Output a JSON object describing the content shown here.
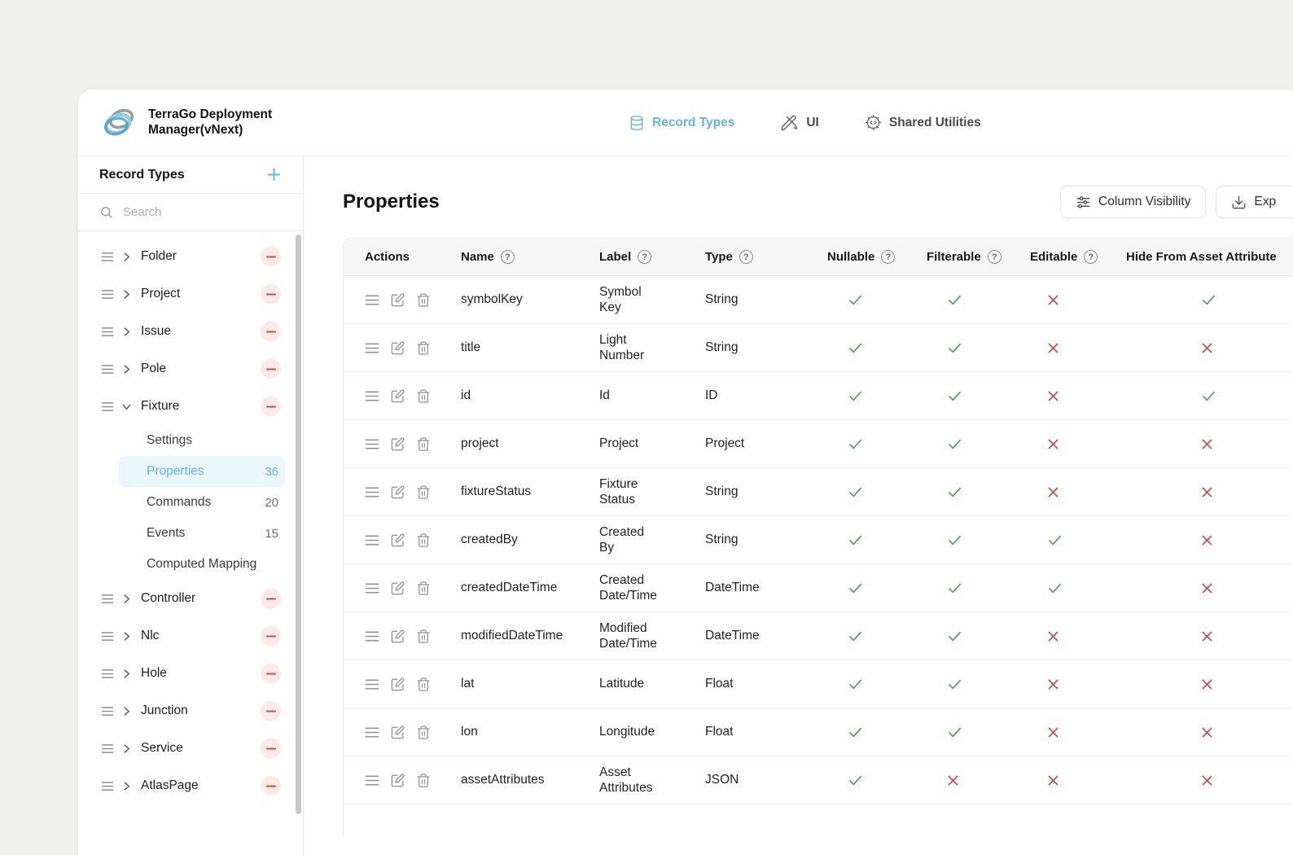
{
  "window": {
    "app_title": "TerraGo Deployment Manager(vNext)",
    "nav": [
      {
        "label": "Record Types",
        "icon": "database-icon",
        "active": true
      },
      {
        "label": "UI",
        "icon": "design-pens-icon",
        "active": false
      },
      {
        "label": "Shared Utilities",
        "icon": "gear-icon",
        "active": false
      }
    ]
  },
  "sidebar": {
    "title": "Record Types",
    "search_placeholder": "Search",
    "items": [
      {
        "label": "Folder"
      },
      {
        "label": "Project"
      },
      {
        "label": "Issue"
      },
      {
        "label": "Pole"
      },
      {
        "label": "Fixture",
        "expanded": true,
        "children": [
          {
            "label": "Settings"
          },
          {
            "label": "Properties",
            "count": "36",
            "selected": true
          },
          {
            "label": "Commands",
            "count": "20"
          },
          {
            "label": "Events",
            "count": "15"
          },
          {
            "label": "Computed Mapping"
          }
        ]
      },
      {
        "label": "Controller"
      },
      {
        "label": "Nlc"
      },
      {
        "label": "Hole"
      },
      {
        "label": "Junction"
      },
      {
        "label": "Service"
      },
      {
        "label": "AtlasPage"
      }
    ]
  },
  "main": {
    "title": "Properties",
    "toolbar": {
      "column_visibility_label": "Column Visibility",
      "export_label": "Exp"
    },
    "table": {
      "help_symbol": "?",
      "columns": [
        {
          "label": "Actions",
          "help": false
        },
        {
          "label": "Name",
          "help": true
        },
        {
          "label": "Label",
          "help": true
        },
        {
          "label": "Type",
          "help": true
        },
        {
          "label": "Nullable",
          "help": true
        },
        {
          "label": "Filterable",
          "help": true
        },
        {
          "label": "Editable",
          "help": true
        },
        {
          "label": "Hide From Asset Attribute",
          "help": false
        }
      ],
      "row_action_icons": [
        "drag-handle-icon",
        "edit-icon",
        "trash-icon"
      ],
      "rows": [
        {
          "name": "symbolKey",
          "label": "Symbol Key",
          "type": "String",
          "nullable": true,
          "filterable": true,
          "editable": false,
          "hide_from_asset_attributes": true
        },
        {
          "name": "title",
          "label": "Light Number",
          "type": "String",
          "nullable": true,
          "filterable": true,
          "editable": false,
          "hide_from_asset_attributes": false
        },
        {
          "name": "id",
          "label": "Id",
          "type": "ID",
          "nullable": true,
          "filterable": true,
          "editable": false,
          "hide_from_asset_attributes": true
        },
        {
          "name": "project",
          "label": "Project",
          "type": "Project",
          "nullable": true,
          "filterable": true,
          "editable": false,
          "hide_from_asset_attributes": false
        },
        {
          "name": "fixtureStatus",
          "label": "Fixture Status",
          "type": "String",
          "nullable": true,
          "filterable": true,
          "editable": false,
          "hide_from_asset_attributes": false
        },
        {
          "name": "createdBy",
          "label": "Created By",
          "type": "String",
          "nullable": true,
          "filterable": true,
          "editable": true,
          "hide_from_asset_attributes": false
        },
        {
          "name": "createdDateTime",
          "label": "Created Date/Time",
          "type": "DateTime",
          "nullable": true,
          "filterable": true,
          "editable": true,
          "hide_from_asset_attributes": false
        },
        {
          "name": "modifiedDateTime",
          "label": "Modified Date/Time",
          "type": "DateTime",
          "nullable": true,
          "filterable": true,
          "editable": false,
          "hide_from_asset_attributes": false
        },
        {
          "name": "lat",
          "label": "Latitude",
          "type": "Float",
          "nullable": true,
          "filterable": true,
          "editable": false,
          "hide_from_asset_attributes": false
        },
        {
          "name": "lon",
          "label": "Longitude",
          "type": "Float",
          "nullable": true,
          "filterable": true,
          "editable": false,
          "hide_from_asset_attributes": false
        },
        {
          "name": "assetAttributes",
          "label": "Asset Attributes",
          "type": "JSON",
          "nullable": true,
          "filterable": false,
          "editable": false,
          "hide_from_asset_attributes": false
        }
      ]
    }
  },
  "colors": {
    "accent_blue": "#64b5e6",
    "check_green": "#4da35b",
    "cross_red": "#c5514b",
    "danger_soft_bg": "#fceae8",
    "page_background": "#f0f0ee"
  }
}
